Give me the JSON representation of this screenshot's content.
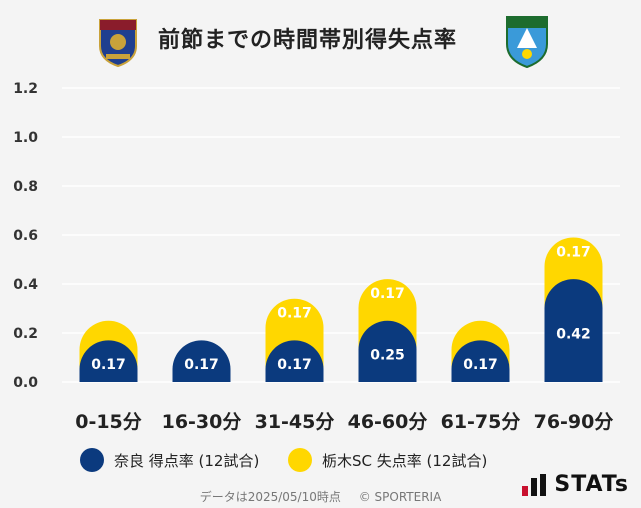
{
  "title": "前節までの時間帯別得失点率",
  "colors": {
    "nara": "#0b3a7e",
    "tochigi": "#ffd700",
    "grid": "#ffffff",
    "background": "#f4f4f4"
  },
  "legend": {
    "nara_label": "奈良 得点率 (12試合)",
    "tochigi_label": "栃木SC 失点率 (12試合)"
  },
  "footer": {
    "date_text": "データは2025/05/10時点",
    "copyright": "© SPORTERIA"
  },
  "brand": {
    "name": "STATs"
  },
  "chart_data": {
    "type": "bar",
    "stacked": true,
    "categories": [
      "0-15分",
      "16-30分",
      "31-45分",
      "46-60分",
      "61-75分",
      "76-90分"
    ],
    "series": [
      {
        "name": "奈良 得点率 (12試合)",
        "values": [
          0.17,
          0.17,
          0.17,
          0.25,
          0.17,
          0.42
        ],
        "labels": [
          "0.17",
          "0.17",
          "0.17",
          "0.25",
          "0.17",
          "0.42"
        ]
      },
      {
        "name": "栃木SC 失点率 (12試合)",
        "values": [
          0.08,
          0,
          0.17,
          0.17,
          0.08,
          0.17
        ],
        "labels": [
          "",
          "",
          "0.17",
          "0.17",
          "",
          "0.17"
        ]
      }
    ],
    "yticks": [
      "0.0",
      "0.2",
      "0.4",
      "0.6",
      "0.8",
      "1.0",
      "1.2"
    ],
    "ylim": [
      0,
      1.2
    ],
    "grid": true,
    "legend_position": "bottom"
  }
}
